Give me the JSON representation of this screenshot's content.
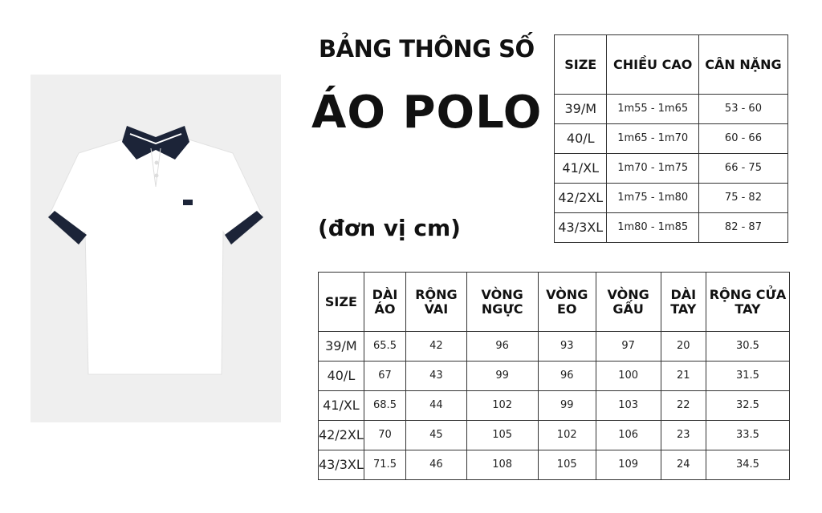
{
  "title": "BẢNG THÔNG SỐ",
  "product": "ÁO POLO",
  "unit": "(đơn vị cm)",
  "colors": {
    "collar": "#1c2438",
    "shirt": "#ffffff",
    "background": "#efefef"
  },
  "fit_table": {
    "headers": [
      "SIZE",
      "CHIỀU CAO",
      "CÂN NẶNG"
    ],
    "rows": [
      [
        "39/M",
        "1m55 - 1m65",
        "53 - 60"
      ],
      [
        "40/L",
        "1m65 - 1m70",
        "60 - 66"
      ],
      [
        "41/XL",
        "1m70 - 1m75",
        "66 - 75"
      ],
      [
        "42/2XL",
        "1m75 - 1m80",
        "75 - 82"
      ],
      [
        "43/3XL",
        "1m80 - 1m85",
        "82 - 87"
      ]
    ]
  },
  "measure_table": {
    "headers": [
      "SIZE",
      "DÀI ÁO",
      "RỘNG VAI",
      "VÒNG NGỰC",
      "VÒNG EO",
      "VÒNG GẤU",
      "DÀI TAY",
      "RỘNG CỬA TAY"
    ],
    "rows": [
      [
        "39/M",
        "65.5",
        "42",
        "96",
        "93",
        "97",
        "20",
        "30.5"
      ],
      [
        "40/L",
        "67",
        "43",
        "99",
        "96",
        "100",
        "21",
        "31.5"
      ],
      [
        "41/XL",
        "68.5",
        "44",
        "102",
        "99",
        "103",
        "22",
        "32.5"
      ],
      [
        "42/2XL",
        "70",
        "45",
        "105",
        "102",
        "106",
        "23",
        "33.5"
      ],
      [
        "43/3XL",
        "71.5",
        "46",
        "108",
        "105",
        "109",
        "24",
        "34.5"
      ]
    ]
  }
}
